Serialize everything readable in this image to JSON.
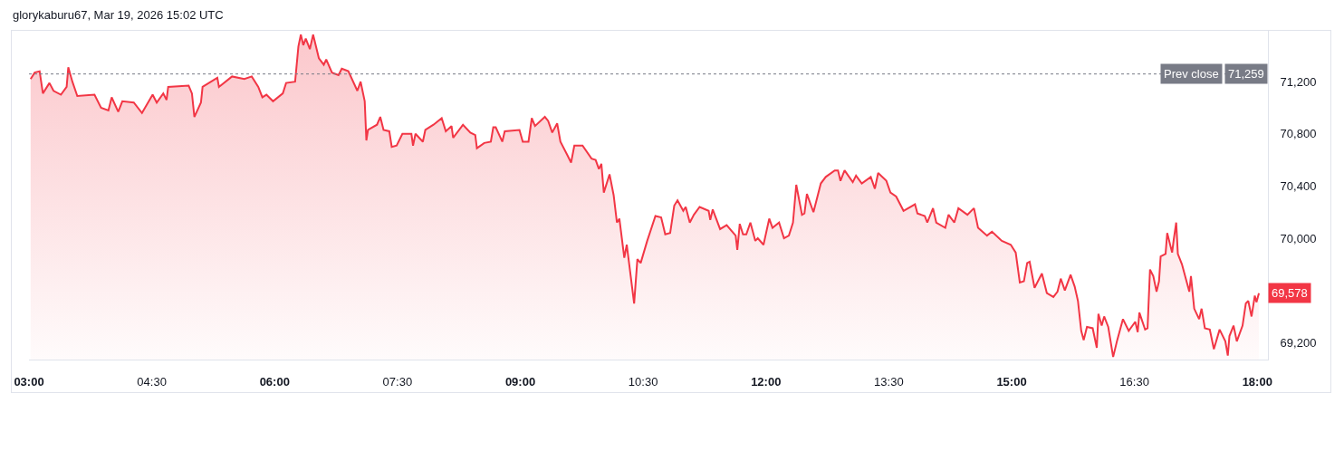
{
  "chart_data": {
    "type": "area",
    "color": "#f23645",
    "annotations": [
      "glorykaburu67, Mar 19, 2026 15:02 UTC",
      {
        "text": "71,259",
        "y": 71259
      },
      {
        "text": "69,578",
        "x": 18.02,
        "y": 69578
      }
    ],
    "x": [
      3.02,
      3.07,
      3.13,
      3.17,
      3.25,
      3.3,
      3.39,
      3.46,
      3.48,
      3.53,
      3.59,
      3.8,
      3.88,
      3.97,
      4.01,
      4.09,
      4.14,
      4.28,
      4.38,
      4.51,
      4.56,
      4.64,
      4.68,
      4.7,
      4.95,
      4.99,
      5.02,
      5.1,
      5.12,
      5.3,
      5.32,
      5.48,
      5.63,
      5.72,
      5.8,
      5.85,
      5.9,
      5.98,
      6.1,
      6.14,
      6.25,
      6.29,
      6.32,
      6.35,
      6.38,
      6.43,
      6.47,
      6.54,
      6.6,
      6.63,
      6.7,
      6.78,
      6.82,
      6.9,
      7.01,
      7.05,
      7.1,
      7.12,
      7.14,
      7.25,
      7.29,
      7.33,
      7.4,
      7.43,
      7.49,
      7.56,
      7.67,
      7.69,
      7.72,
      7.81,
      7.84,
      7.94,
      8.04,
      8.09,
      8.16,
      8.18,
      8.3,
      8.39,
      8.45,
      8.47,
      8.56,
      8.64,
      8.67,
      8.7,
      8.78,
      8.81,
      8.99,
      9.03,
      9.1,
      9.14,
      9.18,
      9.3,
      9.34,
      9.39,
      9.45,
      9.49,
      9.58,
      9.62,
      9.66,
      9.76,
      9.87,
      9.92,
      9.96,
      9.99,
      10.02,
      10.09,
      10.14,
      10.18,
      10.21,
      10.27,
      10.3,
      10.39,
      10.43,
      10.47,
      10.55,
      10.65,
      10.72,
      10.77,
      10.83,
      10.88,
      10.92,
      10.99,
      11.02,
      11.07,
      11.12,
      11.19,
      11.3,
      11.32,
      11.35,
      11.44,
      11.52,
      11.63,
      11.65,
      11.68,
      11.72,
      11.76,
      11.81,
      11.87,
      11.9,
      11.97,
      12.04,
      12.08,
      12.16,
      12.22,
      12.28,
      12.33,
      12.37,
      12.44,
      12.47,
      12.5,
      12.58,
      12.67,
      12.73,
      12.84,
      12.88,
      12.91,
      12.96,
      13.06,
      13.1,
      13.17,
      13.28,
      13.33,
      13.37,
      13.47,
      13.52,
      13.59,
      13.68,
      13.82,
      13.85,
      13.94,
      13.97,
      14.04,
      14.08,
      14.19,
      14.23,
      14.3,
      14.35,
      14.46,
      14.54,
      14.59,
      14.7,
      14.76,
      14.88,
      14.99,
      15.05,
      15.1,
      15.15,
      15.19,
      15.22,
      15.28,
      15.37,
      15.43,
      15.51,
      15.56,
      15.6,
      15.65,
      15.72,
      15.77,
      15.81,
      15.85,
      15.88,
      15.92,
      15.99,
      16.04,
      16.06,
      16.1,
      16.13,
      16.18,
      16.24,
      16.29,
      16.36,
      16.43,
      16.51,
      16.54,
      16.56,
      16.63,
      16.66,
      16.69,
      16.73,
      16.77,
      16.8,
      16.82,
      16.88,
      16.9,
      16.96,
      16.98,
      17.01,
      17.03,
      17.08,
      17.17,
      17.19,
      17.23,
      17.29,
      17.32,
      17.36,
      17.42,
      17.47,
      17.54,
      17.61,
      17.64,
      17.66,
      17.71,
      17.75,
      17.82,
      17.86,
      17.89,
      17.93,
      17.97,
      17.99,
      18.02
    ],
    "values": [
      71220,
      71270,
      71280,
      71110,
      71190,
      71130,
      71100,
      71160,
      71310,
      71200,
      71090,
      71100,
      71000,
      70980,
      71080,
      70970,
      71050,
      71040,
      70960,
      71100,
      71040,
      71110,
      71060,
      71160,
      71170,
      71110,
      70930,
      71040,
      71160,
      71230,
      71160,
      71240,
      71220,
      71240,
      71160,
      71080,
      71100,
      71050,
      71110,
      71190,
      71200,
      71470,
      71560,
      71480,
      71530,
      71450,
      71560,
      71380,
      71330,
      71370,
      71270,
      71250,
      71300,
      71280,
      71130,
      71200,
      71050,
      70750,
      70830,
      70870,
      70930,
      70830,
      70820,
      70700,
      70710,
      70800,
      70800,
      70710,
      70800,
      70740,
      70830,
      70870,
      70920,
      70820,
      70860,
      70770,
      70870,
      70810,
      70790,
      70690,
      70730,
      70740,
      70850,
      70850,
      70740,
      70820,
      70830,
      70740,
      70740,
      70920,
      70860,
      70930,
      70900,
      70810,
      70880,
      70740,
      70630,
      70580,
      70710,
      70710,
      70610,
      70600,
      70530,
      70570,
      70350,
      70490,
      70330,
      70120,
      70150,
      69850,
      69950,
      69500,
      69840,
      69810,
      69980,
      70170,
      70160,
      70030,
      70040,
      70250,
      70290,
      70210,
      70240,
      70120,
      70180,
      70240,
      70210,
      70140,
      70220,
      70070,
      70100,
      70020,
      69910,
      70110,
      70030,
      70030,
      70120,
      69980,
      70000,
      69950,
      70150,
      70080,
      70120,
      70000,
      70020,
      70120,
      70410,
      70180,
      70190,
      70340,
      70200,
      70420,
      70470,
      70520,
      70520,
      70440,
      70520,
      70430,
      70480,
      70420,
      70470,
      70380,
      70500,
      70440,
      70350,
      70320,
      70210,
      70260,
      70190,
      70170,
      70120,
      70230,
      70120,
      70080,
      70180,
      70120,
      70230,
      70180,
      70230,
      70080,
      70020,
      70050,
      69980,
      69950,
      69890,
      69660,
      69670,
      69810,
      69820,
      69620,
      69730,
      69580,
      69550,
      69590,
      69690,
      69600,
      69720,
      69630,
      69520,
      69290,
      69220,
      69320,
      69310,
      69160,
      69420,
      69330,
      69400,
      69320,
      69090,
      69220,
      69380,
      69290,
      69360,
      69280,
      69430,
      69300,
      69310,
      69760,
      69710,
      69590,
      69670,
      69860,
      69880,
      70040,
      69890,
      69990,
      70120,
      69880,
      69800,
      69590,
      69710,
      69460,
      69380,
      69460,
      69310,
      69300,
      69150,
      69300,
      69210,
      69100,
      69250,
      69330,
      69210,
      69330,
      69500,
      69520,
      69400,
      69560,
      69510,
      69578
    ],
    "xlim": [
      3,
      18.13
    ],
    "xticks": [
      {
        "value": 3,
        "label": "03:00"
      },
      {
        "value": 4.5,
        "label": "04:30"
      },
      {
        "value": 6,
        "label": "06:00"
      },
      {
        "value": 7.5,
        "label": "07:30"
      },
      {
        "value": 9,
        "label": "09:00"
      },
      {
        "value": 10.5,
        "label": "10:30"
      },
      {
        "value": 12,
        "label": "12:00"
      },
      {
        "value": 13.5,
        "label": "13:30"
      },
      {
        "value": 15,
        "label": "15:00"
      },
      {
        "value": 16.5,
        "label": "16:30"
      },
      {
        "value": 18,
        "label": "18:00"
      }
    ],
    "ylim": [
      69070,
      71590
    ],
    "yticks": [
      {
        "value": 69200,
        "label": "69,200"
      },
      {
        "value": 70000,
        "label": "70,000"
      },
      {
        "value": 70400,
        "label": "70,400"
      },
      {
        "value": 70800,
        "label": "70,800"
      },
      {
        "value": 71200,
        "label": "71,200"
      }
    ],
    "ref_lines": [
      {
        "axis": "y",
        "value": 71259,
        "label": "Prev close",
        "color": "#787b86",
        "line_style": "dotted"
      }
    ],
    "grid": false,
    "legend": false
  }
}
